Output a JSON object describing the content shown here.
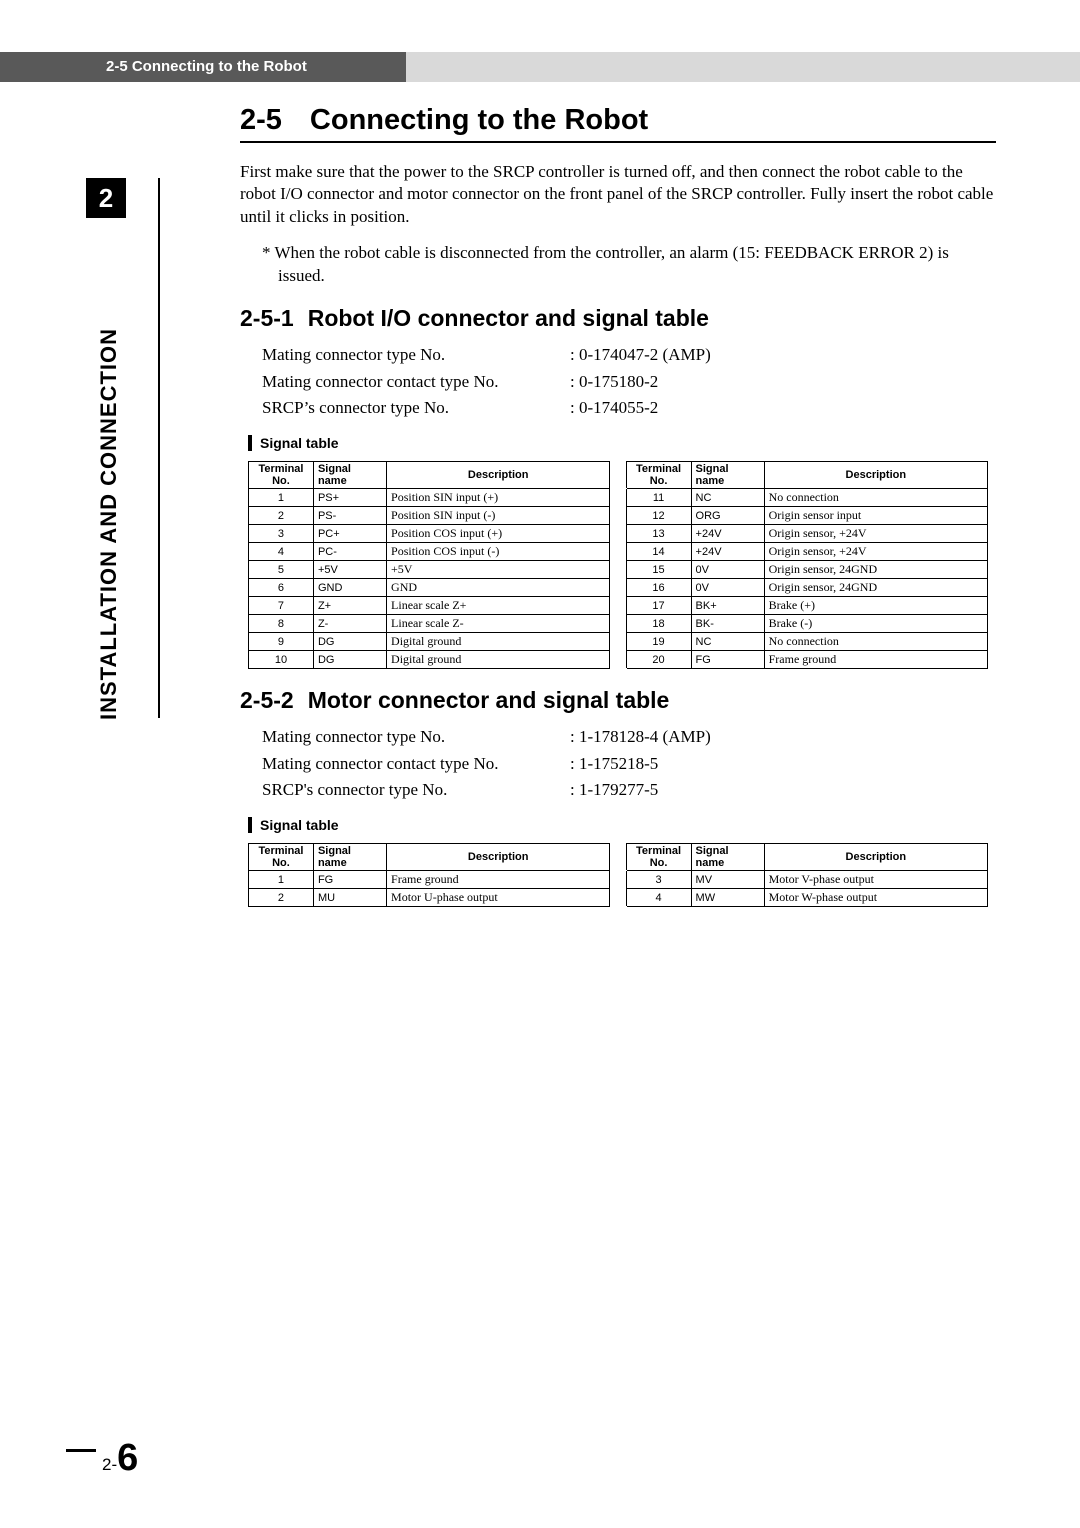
{
  "running_header": "2-5 Connecting to the Robot",
  "chapter_number": "2",
  "chapter_title": "INSTALLATION AND CONNECTION",
  "page_number_prefix": "2-",
  "page_number_big": "6",
  "h1_number": "2-5",
  "h1_title": "Connecting to the Robot",
  "intro_para": "First make sure that the power to the SRCP controller is turned off, and then connect the robot cable to the robot I/O connector and motor connector on the front panel of the SRCP controller. Fully insert the robot cable until it clicks in position.",
  "note_text": "* When the robot cable is disconnected from the controller, an alarm (15: FEEDBACK ERROR 2) is issued.",
  "sec251_number": "2-5-1",
  "sec251_title": "Robot I/O connector and signal table",
  "sec251_kv": [
    {
      "k": "Mating connector type No.",
      "v": "0-174047-2 (AMP)"
    },
    {
      "k": "Mating connector contact type No.",
      "v": "0-175180-2"
    },
    {
      "k": "SRCP’s connector type No.",
      "v": "0-174055-2"
    }
  ],
  "sec251_caption": "Signal table",
  "table1": {
    "columns": [
      "Terminal No.",
      "Signal name",
      "Description",
      "Terminal No.",
      "Signal name",
      "Description"
    ],
    "rows": [
      [
        "1",
        "PS+",
        "Position SIN input (+)",
        "11",
        "NC",
        "No connection"
      ],
      [
        "2",
        "PS-",
        "Position SIN input (-)",
        "12",
        "ORG",
        "Origin sensor input"
      ],
      [
        "3",
        "PC+",
        "Position COS input  (+)",
        "13",
        "+24V",
        "Origin sensor, +24V"
      ],
      [
        "4",
        "PC-",
        "Position COS input  (-)",
        "14",
        "+24V",
        "Origin sensor, +24V"
      ],
      [
        "5",
        "+5V",
        "+5V",
        "15",
        "0V",
        "Origin sensor, 24GND"
      ],
      [
        "6",
        "GND",
        "GND",
        "16",
        "0V",
        "Origin sensor, 24GND"
      ],
      [
        "7",
        "Z+",
        "Linear scale Z+",
        "17",
        "BK+",
        "Brake (+)"
      ],
      [
        "8",
        "Z-",
        "Linear scale Z-",
        "18",
        "BK-",
        "Brake (-)"
      ],
      [
        "9",
        "DG",
        "Digital ground",
        "19",
        "NC",
        "No connection"
      ],
      [
        "10",
        "DG",
        "Digital ground",
        "20",
        "FG",
        "Frame ground"
      ]
    ]
  },
  "sec252_number": "2-5-2",
  "sec252_title": "Motor connector and signal table",
  "sec252_kv": [
    {
      "k": "Mating connector type No.",
      "v": "1-178128-4 (AMP)"
    },
    {
      "k": "Mating connector contact type No.",
      "v": "1-175218-5"
    },
    {
      "k": "SRCP's connector type No.",
      "v": "1-179277-5"
    }
  ],
  "sec252_caption": "Signal table",
  "table2": {
    "columns": [
      "Terminal No.",
      "Signal name",
      "Description",
      "Terminal No.",
      "Signal name",
      "Description"
    ],
    "rows": [
      [
        "1",
        "FG",
        "Frame ground",
        "3",
        "MV",
        "Motor V-phase output"
      ],
      [
        "2",
        "MU",
        "Motor U-phase output",
        "4",
        "MW",
        "Motor W-phase output"
      ]
    ]
  },
  "colors": {
    "header_tab": "#595959",
    "header_bar": "#d9d9d9",
    "text": "#000000",
    "bg": "#ffffff"
  }
}
